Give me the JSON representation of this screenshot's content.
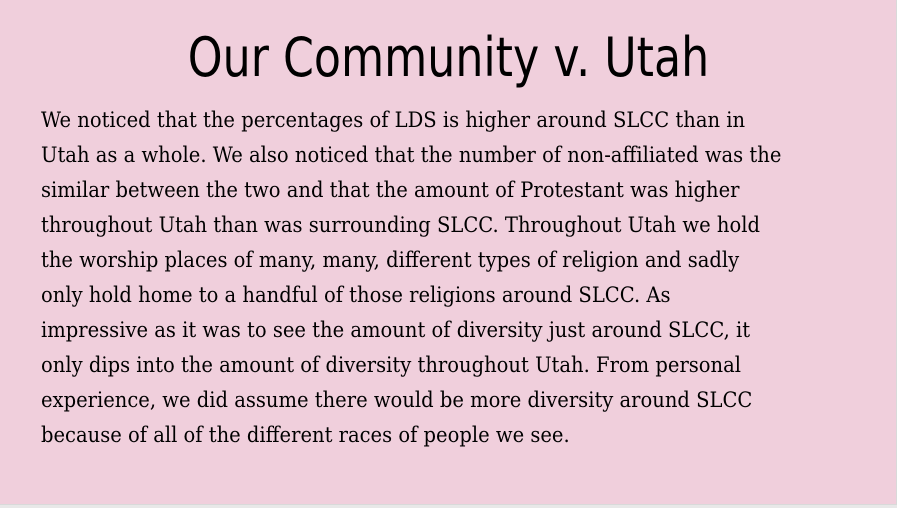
{
  "slide": {
    "title": "Our Community v. Utah",
    "body_lines": [
      "We noticed that the percentages of LDS is higher around SLCC than in",
      "Utah as a whole. We also noticed that the number of non-affiliated was the",
      "similar between the two and that the amount of Protestant was higher",
      "throughout Utah than was surrounding SLCC. Throughout Utah we hold",
      "the worship places of many, many, different types of religion and sadly",
      "only hold home to a handful of those religions around SLCC. As",
      "impressive as it was to see the amount of diversity just around SLCC, it",
      "only dips into the amount of diversity throughout Utah. From personal",
      "experience, we did assume there would be more diversity around SLCC",
      "because of all of the different races of people we see."
    ]
  },
  "colors": {
    "background": "#f0cfdc",
    "text": "#000000"
  }
}
